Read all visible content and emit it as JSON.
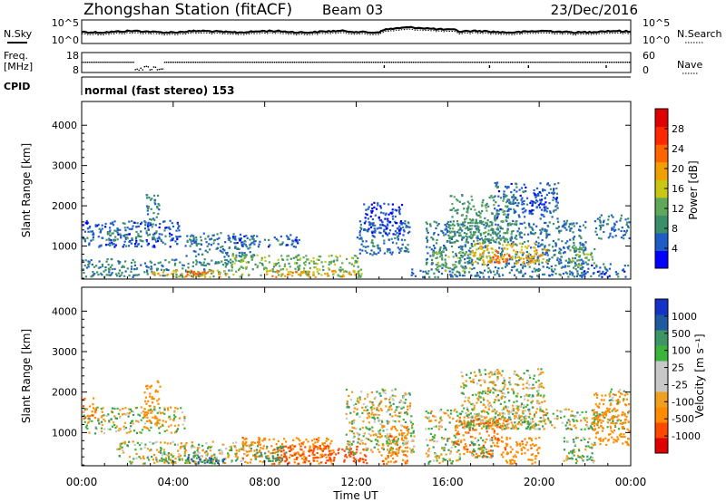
{
  "header": {
    "station": "Zhongshan Station (fitACF)",
    "beam": "Beam 03",
    "date": "23/Dec/2016"
  },
  "summary_panels": {
    "nsky_label": "N.Sky",
    "nsky_ticks": [
      "10^5",
      "10^0"
    ],
    "nsearch_label": "N.Search",
    "nsearch_ticks": [
      "10^5",
      "10^0"
    ],
    "freq_label_1": "Freq.",
    "freq_label_2": "[MHz]",
    "freq_ticks": [
      "18",
      "8"
    ],
    "nave_label": "Nave",
    "nave_ticks": [
      "60",
      "0"
    ],
    "cpid_label": "CPID",
    "cpid_text": "normal (fast stereo) 153"
  },
  "colors": {
    "power_scale": [
      "#0000ff",
      "#1e5cc8",
      "#3a8f6a",
      "#5fa85a",
      "#c8c814",
      "#f0a000",
      "#ff6400",
      "#ff2800",
      "#e00000"
    ],
    "velocity_scale": [
      "#e00000",
      "#ff4800",
      "#ff8c00",
      "#f0a020",
      "#c8c8c8",
      "#c8c8c8",
      "#3cb43c",
      "#3c9664",
      "#1e5aa0",
      "#1432c8"
    ]
  },
  "chart_data": [
    {
      "type": "heatmap",
      "title": "",
      "xlabel": "Time UT",
      "ylabel": "Slant Range [km]",
      "x_ticks": [
        "00:00",
        "04:00",
        "08:00",
        "12:00",
        "16:00",
        "20:00",
        "00:00"
      ],
      "xlim": [
        0,
        24
      ],
      "y_ticks": [
        "4000",
        "3000",
        "2000",
        "1000"
      ],
      "ylim": [
        180,
        4590
      ],
      "colorbar": {
        "label": "Power [dB]",
        "ticks": [
          "28",
          "24",
          "20",
          "16",
          "12",
          "8",
          "4"
        ],
        "range": [
          0,
          32
        ]
      },
      "regions": [
        {
          "t": [
            0.0,
            4.3
          ],
          "r": [
            1000,
            1650
          ],
          "v": 6
        },
        {
          "t": [
            1.0,
            3.3
          ],
          "r": [
            1150,
            1400
          ],
          "v": 10
        },
        {
          "t": [
            2.8,
            3.4
          ],
          "r": [
            1500,
            2350
          ],
          "v": 9
        },
        {
          "t": [
            0.0,
            6.5
          ],
          "r": [
            250,
            700
          ],
          "v": 9
        },
        {
          "t": [
            3.0,
            6.5
          ],
          "r": [
            250,
            420
          ],
          "v": 20
        },
        {
          "t": [
            4.2,
            5.6
          ],
          "r": [
            250,
            400
          ],
          "v": 26
        },
        {
          "t": [
            4.5,
            7.5
          ],
          "r": [
            750,
            1350
          ],
          "v": 8
        },
        {
          "t": [
            6.5,
            12.2
          ],
          "r": [
            250,
            800
          ],
          "v": 14
        },
        {
          "t": [
            8.0,
            12.0
          ],
          "r": [
            250,
            420
          ],
          "v": 22
        },
        {
          "t": [
            6.5,
            9.5
          ],
          "r": [
            1000,
            1300
          ],
          "v": 6
        },
        {
          "t": [
            12.0,
            14.3
          ],
          "r": [
            800,
            1650
          ],
          "v": 7
        },
        {
          "t": [
            12.3,
            14.0
          ],
          "r": [
            1300,
            2100
          ],
          "v": 5
        },
        {
          "t": [
            14.3,
            15.0
          ],
          "r": [
            250,
            450
          ],
          "v": 7
        },
        {
          "t": [
            15.0,
            22.0
          ],
          "r": [
            250,
            1650
          ],
          "v": 8
        },
        {
          "t": [
            15.3,
            17.0
          ],
          "r": [
            400,
            900
          ],
          "v": 14
        },
        {
          "t": [
            17.0,
            19.8
          ],
          "r": [
            550,
            1100
          ],
          "v": 20
        },
        {
          "t": [
            17.8,
            18.8
          ],
          "r": [
            600,
            900
          ],
          "v": 27
        },
        {
          "t": [
            16.0,
            19.0
          ],
          "r": [
            1100,
            2300
          ],
          "v": 11
        },
        {
          "t": [
            18.0,
            20.8
          ],
          "r": [
            1700,
            2600
          ],
          "v": 6
        },
        {
          "t": [
            19.4,
            20.3
          ],
          "r": [
            600,
            950
          ],
          "v": 22
        },
        {
          "t": [
            21.2,
            22.4
          ],
          "r": [
            500,
            1000
          ],
          "v": 14
        },
        {
          "t": [
            22.4,
            24.0
          ],
          "r": [
            1200,
            1800
          ],
          "v": 7
        },
        {
          "t": [
            21.8,
            24.0
          ],
          "r": [
            250,
            600
          ],
          "v": 6
        }
      ]
    },
    {
      "type": "heatmap",
      "title": "",
      "xlabel": "Time UT",
      "ylabel": "Slant Range [km]",
      "x_ticks": [
        "00:00",
        "04:00",
        "08:00",
        "12:00",
        "16:00",
        "20:00",
        "00:00"
      ],
      "xlim": [
        0,
        24
      ],
      "y_ticks": [
        "4000",
        "3000",
        "2000",
        "1000"
      ],
      "ylim": [
        180,
        4590
      ],
      "colorbar": {
        "label": "Velocity [m s⁻¹]",
        "ticks": [
          "1000",
          "500",
          "100",
          "25",
          "-25",
          "-100",
          "-500",
          "-1000"
        ],
        "range": [
          -1200,
          1200
        ]
      },
      "regions": [
        {
          "t": [
            0.0,
            0.6
          ],
          "r": [
            1350,
            1900
          ],
          "v": -450
        },
        {
          "t": [
            0.0,
            4.5
          ],
          "r": [
            1000,
            1650
          ],
          "v": 0
        },
        {
          "t": [
            2.7,
            3.4
          ],
          "r": [
            1300,
            2300
          ],
          "v": -300
        },
        {
          "t": [
            1.5,
            7.5
          ],
          "r": [
            250,
            800
          ],
          "v": 0
        },
        {
          "t": [
            3.2,
            6.2
          ],
          "r": [
            250,
            500
          ],
          "v": 60
        },
        {
          "t": [
            4.5,
            6.2
          ],
          "r": [
            250,
            420
          ],
          "v": 650
        },
        {
          "t": [
            7.0,
            11.0
          ],
          "r": [
            250,
            900
          ],
          "v": -380
        },
        {
          "t": [
            8.5,
            12.5
          ],
          "r": [
            250,
            700
          ],
          "v": -700
        },
        {
          "t": [
            7.5,
            9.0
          ],
          "r": [
            300,
            700
          ],
          "v": 300
        },
        {
          "t": [
            11.5,
            14.5
          ],
          "r": [
            500,
            2100
          ],
          "v": 0
        },
        {
          "t": [
            13.0,
            14.2
          ],
          "r": [
            250,
            1200
          ],
          "v": -400
        },
        {
          "t": [
            15.0,
            24.0
          ],
          "r": [
            1100,
            1600
          ],
          "v": 0
        },
        {
          "t": [
            15.0,
            16.5
          ],
          "r": [
            250,
            1000
          ],
          "v": 0
        },
        {
          "t": [
            16.3,
            18.6
          ],
          "r": [
            400,
            1400
          ],
          "v": -420
        },
        {
          "t": [
            17.0,
            18.0
          ],
          "r": [
            400,
            900
          ],
          "v": 120
        },
        {
          "t": [
            16.5,
            20.2
          ],
          "r": [
            1100,
            2600
          ],
          "v": 0
        },
        {
          "t": [
            18.5,
            20.0
          ],
          "r": [
            250,
            900
          ],
          "v": -380
        },
        {
          "t": [
            21.0,
            22.4
          ],
          "r": [
            250,
            900
          ],
          "v": 60
        },
        {
          "t": [
            22.3,
            24.0
          ],
          "r": [
            700,
            2000
          ],
          "v": -300
        },
        {
          "t": [
            23.0,
            24.0
          ],
          "r": [
            1700,
            2100
          ],
          "v": 0
        }
      ]
    }
  ]
}
